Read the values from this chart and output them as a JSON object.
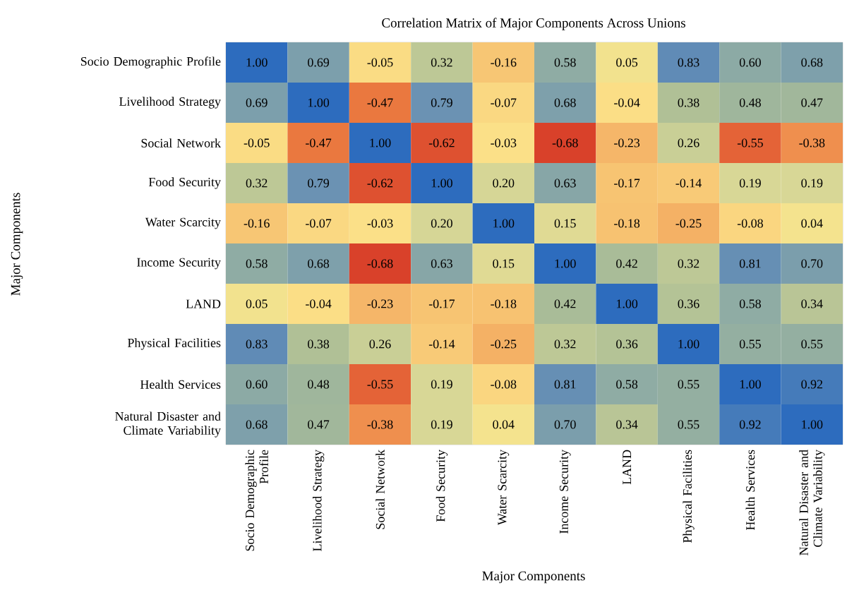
{
  "chart_data": {
    "type": "heatmap",
    "title": "Correlation Matrix of Major Components Across Unions",
    "xlabel": "Major Components",
    "ylabel": "Major Components",
    "categories": [
      "Socio Demographic Profile",
      "Livelihood Strategy",
      "Social Network",
      "Food Security",
      "Water Scarcity",
      "Income Security",
      "LAND",
      "Physical Facilities",
      "Health Services",
      "Natural Disaster and Climate Variability"
    ],
    "y_categories": [
      "Socio Demographic Profile",
      "Livelihood Strategy",
      "Social Network",
      "Food Security",
      "Water Scarcity",
      "Income Security",
      "LAND",
      "Physical Facilities",
      "Health Services",
      "Natural Disaster and Climate Variability"
    ],
    "cells": [
      [
        1.0,
        0.69,
        -0.05,
        0.32,
        -0.16,
        0.58,
        0.05,
        0.83,
        0.6,
        0.68
      ],
      [
        0.69,
        1.0,
        -0.47,
        0.79,
        -0.07,
        0.68,
        -0.04,
        0.38,
        0.48,
        0.47
      ],
      [
        -0.05,
        -0.47,
        1.0,
        -0.62,
        -0.03,
        -0.68,
        -0.23,
        0.26,
        -0.55,
        -0.38
      ],
      [
        0.32,
        0.79,
        -0.62,
        1.0,
        0.2,
        0.63,
        -0.17,
        -0.14,
        0.19,
        0.19
      ],
      [
        -0.16,
        -0.07,
        -0.03,
        0.2,
        1.0,
        0.15,
        -0.18,
        -0.25,
        -0.08,
        0.04
      ],
      [
        0.58,
        0.68,
        -0.68,
        0.63,
        0.15,
        1.0,
        0.42,
        0.32,
        0.81,
        0.7
      ],
      [
        0.05,
        -0.04,
        -0.23,
        -0.17,
        -0.18,
        0.42,
        1.0,
        0.36,
        0.58,
        0.34
      ],
      [
        0.83,
        0.38,
        0.26,
        -0.14,
        -0.25,
        0.32,
        0.36,
        1.0,
        0.55,
        0.55
      ],
      [
        0.6,
        0.48,
        -0.55,
        0.19,
        -0.08,
        0.81,
        0.58,
        0.55,
        1.0,
        0.92
      ],
      [
        0.68,
        0.47,
        -0.38,
        0.19,
        0.04,
        0.7,
        0.34,
        0.55,
        0.92,
        1.0
      ]
    ],
    "cell_labels": [
      [
        "1.00",
        "0.69",
        "-0.05",
        "0.32",
        "-0.16",
        "0.58",
        "0.05",
        "0.83",
        "0.60",
        "0.68"
      ],
      [
        "0.69",
        "1.00",
        "-0.47",
        "0.79",
        "-0.07",
        "0.68",
        "-0.04",
        "0.38",
        "0.48",
        "0.47"
      ],
      [
        "-0.05",
        "-0.47",
        "1.00",
        "-0.62",
        "-0.03",
        "-0.68",
        "-0.23",
        "0.26",
        "-0.55",
        "-0.38"
      ],
      [
        "0.32",
        "0.79",
        "-0.62",
        "1.00",
        "0.20",
        "0.63",
        "-0.17",
        "-0.14",
        "0.19",
        "0.19"
      ],
      [
        "-0.16",
        "-0.07",
        "-0.03",
        "0.20",
        "1.00",
        "0.15",
        "-0.18",
        "-0.25",
        "-0.08",
        "0.04"
      ],
      [
        "0.58",
        "0.68",
        "-0.68",
        "0.63",
        "0.15",
        "1.00",
        "0.42",
        "0.32",
        "0.81",
        "0.70"
      ],
      [
        "0.05",
        "-0.04",
        "-0.23",
        "-0.17",
        "-0.18",
        "0.42",
        "1.00",
        "0.36",
        "0.58",
        "0.34"
      ],
      [
        "0.83",
        "0.38",
        "0.26",
        "-0.14",
        "-0.25",
        "0.32",
        "0.36",
        "1.00",
        "0.55",
        "0.55"
      ],
      [
        "0.60",
        "0.48",
        "-0.55",
        "0.19",
        "-0.08",
        "0.81",
        "0.58",
        "0.55",
        "1.00",
        "0.92"
      ],
      [
        "0.68",
        "0.47",
        "-0.38",
        "0.19",
        "0.04",
        "0.70",
        "0.34",
        "0.55",
        "0.92",
        "1.00"
      ]
    ]
  }
}
